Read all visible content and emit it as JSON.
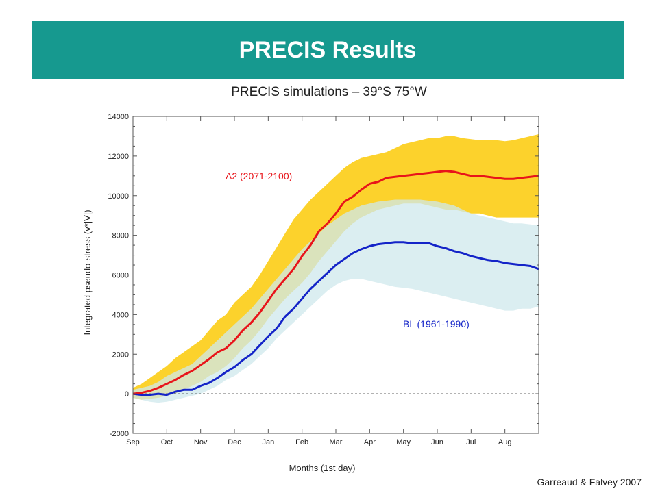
{
  "header": {
    "title": "PRECIS Results"
  },
  "subtitle": "PRECIS simulations – 39°S 75°W",
  "credit": "Garreaud & Falvey 2007",
  "chart_data": {
    "type": "line",
    "title": "PRECIS simulations – 39°S 75°W",
    "xlabel": "Months (1st day)",
    "ylabel": "Integrated pseudo-stress (v*|V|)",
    "xlim": [
      0,
      12
    ],
    "ylim": [
      -2000,
      14000
    ],
    "yticks": [
      -2000,
      0,
      2000,
      4000,
      6000,
      8000,
      10000,
      12000,
      14000
    ],
    "ytick_labels": [
      "-2000",
      "0",
      "2000",
      "4000",
      "6000",
      "8000",
      "10000",
      "12000",
      "14000"
    ],
    "xtick_labels": [
      "Sep",
      "Oct",
      "Nov",
      "Dec",
      "Jan",
      "Feb",
      "Mar",
      "Apr",
      "May",
      "Jun",
      "Jul",
      "Aug"
    ],
    "zero_line": "dashed",
    "colors": {
      "a2_line": "#e8141a",
      "a2_band": "#fcd22c",
      "bl_line": "#1424c8",
      "bl_band": "#cfe8ec"
    },
    "series": [
      {
        "name": "A2 (2071-2100)",
        "x": [
          0,
          0.25,
          0.5,
          0.75,
          1,
          1.25,
          1.5,
          1.75,
          2,
          2.25,
          2.5,
          2.75,
          3,
          3.25,
          3.5,
          3.75,
          4,
          4.25,
          4.5,
          4.75,
          5,
          5.25,
          5.5,
          5.75,
          6,
          6.25,
          6.5,
          6.75,
          7,
          7.25,
          7.5,
          7.75,
          8,
          8.25,
          8.5,
          8.75,
          9,
          9.25,
          9.5,
          9.75,
          10,
          10.25,
          10.5,
          10.75,
          11,
          11.25,
          11.5,
          11.75,
          12
        ],
        "values": [
          0,
          50,
          150,
          300,
          500,
          700,
          950,
          1150,
          1450,
          1750,
          2100,
          2300,
          2700,
          3200,
          3600,
          4100,
          4700,
          5300,
          5800,
          6300,
          6950,
          7500,
          8200,
          8600,
          9100,
          9700,
          9950,
          10300,
          10600,
          10700,
          10900,
          10950,
          11000,
          11050,
          11100,
          11150,
          11200,
          11250,
          11200,
          11100,
          11000,
          11000,
          10950,
          10900,
          10850,
          10850,
          10900,
          10950,
          11000
        ],
        "band_upper": [
          300,
          500,
          800,
          1100,
          1400,
          1800,
          2100,
          2400,
          2700,
          3200,
          3700,
          4000,
          4600,
          5000,
          5400,
          6000,
          6700,
          7400,
          8100,
          8800,
          9300,
          9800,
          10200,
          10600,
          11000,
          11400,
          11700,
          11900,
          12000,
          12100,
          12200,
          12400,
          12600,
          12700,
          12800,
          12900,
          12900,
          13000,
          13000,
          12900,
          12850,
          12800,
          12800,
          12800,
          12750,
          12800,
          12900,
          13000,
          13100
        ],
        "band_lower": [
          -200,
          -300,
          -250,
          -200,
          -100,
          0,
          200,
          400,
          600,
          900,
          1100,
          1400,
          1800,
          2300,
          2700,
          3200,
          3800,
          4300,
          4800,
          5200,
          5600,
          6100,
          6700,
          7200,
          7700,
          8200,
          8600,
          8900,
          9100,
          9300,
          9400,
          9500,
          9600,
          9600,
          9600,
          9500,
          9400,
          9300,
          9300,
          9200,
          9100,
          9100,
          9000,
          8900,
          8900,
          8900,
          8900,
          8900,
          8900
        ]
      },
      {
        "name": "BL (1961-1990)",
        "x": [
          0,
          0.25,
          0.5,
          0.75,
          1,
          1.25,
          1.5,
          1.75,
          2,
          2.25,
          2.5,
          2.75,
          3,
          3.25,
          3.5,
          3.75,
          4,
          4.25,
          4.5,
          4.75,
          5,
          5.25,
          5.5,
          5.75,
          6,
          6.25,
          6.5,
          6.75,
          7,
          7.25,
          7.5,
          7.75,
          8,
          8.25,
          8.5,
          8.75,
          9,
          9.25,
          9.5,
          9.75,
          10,
          10.25,
          10.5,
          10.75,
          11,
          11.25,
          11.5,
          11.75,
          12
        ],
        "values": [
          0,
          -50,
          -50,
          0,
          -50,
          100,
          200,
          200,
          400,
          550,
          800,
          1100,
          1350,
          1700,
          2000,
          2450,
          2900,
          3300,
          3900,
          4300,
          4800,
          5300,
          5700,
          6100,
          6500,
          6800,
          7100,
          7300,
          7450,
          7550,
          7600,
          7650,
          7650,
          7600,
          7600,
          7600,
          7450,
          7350,
          7200,
          7100,
          6950,
          6850,
          6750,
          6700,
          6600,
          6550,
          6500,
          6450,
          6300
        ],
        "band_upper": [
          200,
          300,
          400,
          600,
          900,
          1100,
          1300,
          1500,
          1900,
          2300,
          2700,
          3100,
          3500,
          3900,
          4300,
          4800,
          5300,
          5800,
          6300,
          6800,
          7300,
          7700,
          8100,
          8500,
          8800,
          9100,
          9300,
          9500,
          9600,
          9700,
          9750,
          9800,
          9800,
          9800,
          9800,
          9750,
          9700,
          9600,
          9500,
          9300,
          9100,
          9000,
          8900,
          8800,
          8700,
          8600,
          8600,
          8550,
          8500
        ],
        "band_lower": [
          -200,
          -300,
          -400,
          -450,
          -400,
          -300,
          -200,
          -100,
          0,
          200,
          400,
          700,
          900,
          1200,
          1500,
          1900,
          2300,
          2800,
          3200,
          3600,
          4000,
          4400,
          4800,
          5200,
          5500,
          5700,
          5800,
          5800,
          5700,
          5600,
          5500,
          5400,
          5350,
          5300,
          5200,
          5100,
          5000,
          4900,
          4800,
          4700,
          4600,
          4500,
          4400,
          4300,
          4200,
          4200,
          4300,
          4300,
          4400
        ]
      }
    ],
    "annotations": [
      {
        "text": "A2 (2071-2100)",
        "series": "A2 (2071-2100)"
      },
      {
        "text": "BL (1961-1990)",
        "series": "BL (1961-1990)"
      }
    ]
  }
}
